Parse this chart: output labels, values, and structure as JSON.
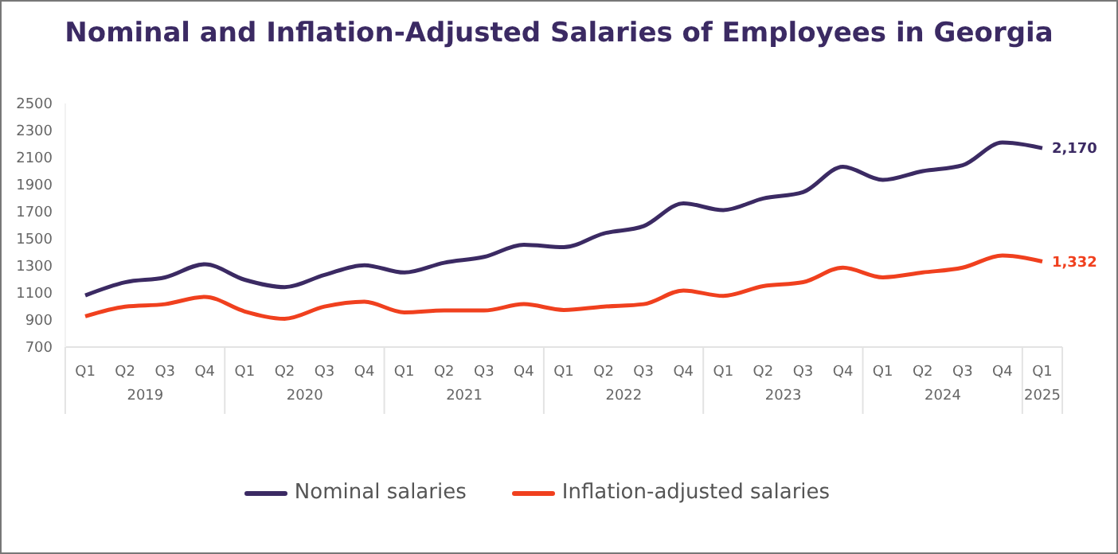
{
  "chart_data": {
    "type": "line",
    "title": "Nominal and Inflation-Adjusted Salaries of Employees in Georgia",
    "categories": [
      "Q1",
      "Q2",
      "Q3",
      "Q4",
      "Q1",
      "Q2",
      "Q3",
      "Q4",
      "Q1",
      "Q2",
      "Q3",
      "Q4",
      "Q1",
      "Q2",
      "Q3",
      "Q4",
      "Q1",
      "Q2",
      "Q3",
      "Q4",
      "Q1",
      "Q2",
      "Q3",
      "Q4",
      "Q1"
    ],
    "annotations": [
      "2019",
      "2020",
      "2021",
      "2022",
      "2023",
      "2024",
      "2025"
    ],
    "series": [
      {
        "name": "Nominal salaries",
        "color": "#3b2a63",
        "values": [
          1082,
          1179,
          1215,
          1312,
          1197,
          1143,
          1233,
          1305,
          1251,
          1323,
          1366,
          1456,
          1438,
          1539,
          1593,
          1762,
          1712,
          1798,
          1845,
          2032,
          1935,
          2000,
          2043,
          2212,
          2170
        ],
        "value_labels": [
          null,
          null,
          null,
          null,
          null,
          null,
          null,
          null,
          null,
          null,
          null,
          null,
          null,
          null,
          null,
          null,
          null,
          null,
          null,
          null,
          null,
          null,
          null,
          null,
          "2,170"
        ]
      },
      {
        "name": "Inflation-adjusted salaries",
        "color": "#f0401e",
        "values": [
          927,
          999,
          1017,
          1071,
          963,
          909,
          999,
          1035,
          956,
          970,
          970,
          1017,
          974,
          999,
          1017,
          1118,
          1078,
          1150,
          1179,
          1287,
          1215,
          1251,
          1287,
          1377,
          1332
        ],
        "value_labels": [
          null,
          null,
          null,
          null,
          null,
          null,
          null,
          null,
          null,
          null,
          null,
          null,
          null,
          null,
          null,
          null,
          null,
          null,
          null,
          null,
          null,
          null,
          null,
          null,
          "1,332"
        ]
      }
    ],
    "ylim": [
      700,
      2500
    ],
    "yticks": [
      700,
      900,
      1100,
      1300,
      1500,
      1700,
      1900,
      2100,
      2300,
      2500
    ],
    "grid": false,
    "legend": "bottom",
    "marker": "none",
    "line_style": "solid"
  }
}
